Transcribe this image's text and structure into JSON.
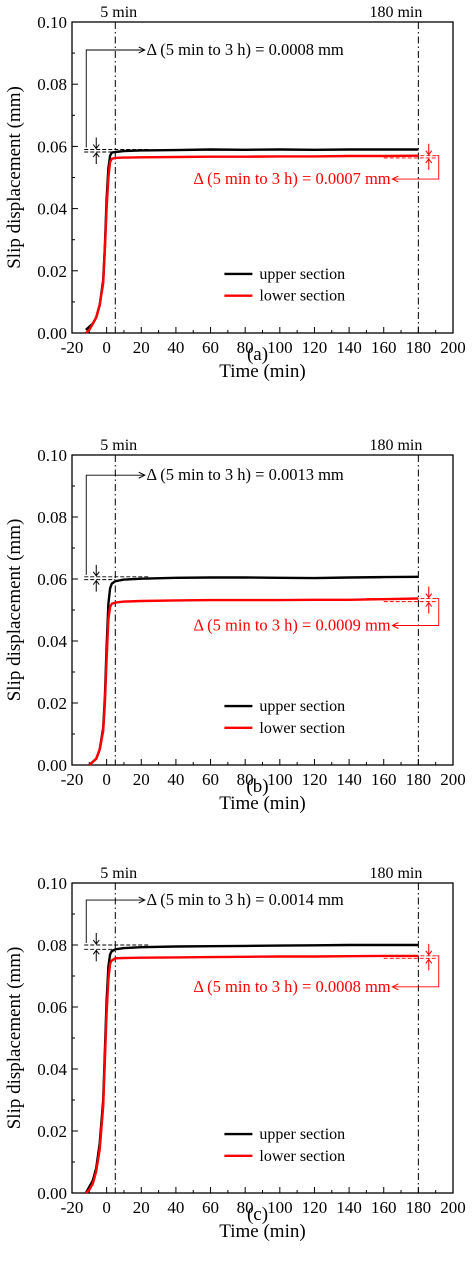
{
  "colors": {
    "upper": "#000000",
    "lower": "#ff0000",
    "axis": "#000000"
  },
  "chart_data": [
    {
      "type": "line",
      "panel_label": "(a)",
      "xlabel": "Time (min)",
      "ylabel": "Slip displacement (mm)",
      "xlim": [
        -20,
        200
      ],
      "ylim": [
        0,
        0.1
      ],
      "xticks": [
        "-20",
        "0",
        "20",
        "40",
        "60",
        "80",
        "100",
        "120",
        "140",
        "160",
        "180",
        "200"
      ],
      "yticks": [
        "0.00",
        "0.02",
        "0.04",
        "0.06",
        "0.08",
        "0.10"
      ],
      "markers": [
        {
          "x": 5,
          "label": "5 min"
        },
        {
          "x": 180,
          "label": "180 min"
        }
      ],
      "legend": {
        "position": "lower-right"
      },
      "series": [
        {
          "name": "upper section",
          "color": "#000000",
          "x": [
            -12,
            -10,
            -8,
            -6,
            -4,
            -2,
            -1,
            0,
            1,
            2,
            3,
            5,
            10,
            20,
            40,
            60,
            80,
            100,
            120,
            140,
            160,
            180
          ],
          "y": [
            0.001,
            0.002,
            0.003,
            0.005,
            0.009,
            0.017,
            0.028,
            0.043,
            0.053,
            0.057,
            0.058,
            0.0582,
            0.0585,
            0.0587,
            0.0588,
            0.059,
            0.0589,
            0.059,
            0.0589,
            0.059,
            0.059,
            0.059
          ]
        },
        {
          "name": "lower section",
          "color": "#ff0000",
          "x": [
            -12,
            -10,
            -8,
            -6,
            -4,
            -2,
            -1,
            0,
            1,
            2,
            3,
            5,
            10,
            20,
            40,
            60,
            80,
            100,
            120,
            140,
            160,
            180
          ],
          "y": [
            0.0,
            0.001,
            0.003,
            0.005,
            0.009,
            0.016,
            0.027,
            0.04,
            0.05,
            0.055,
            0.056,
            0.0563,
            0.0564,
            0.0565,
            0.0566,
            0.0567,
            0.0567,
            0.0568,
            0.0568,
            0.0569,
            0.0569,
            0.057
          ]
        }
      ],
      "annotations": [
        {
          "text": "Δ (5 min to 3 h) = 0.0008 mm",
          "target": "upper"
        },
        {
          "text": "Δ (5 min to 3 h) = 0.0007 mm",
          "target": "lower"
        }
      ]
    },
    {
      "type": "line",
      "panel_label": "(b)",
      "xlabel": "Time (min)",
      "ylabel": "Slip displacement (mm)",
      "xlim": [
        -20,
        200
      ],
      "ylim": [
        0,
        0.1
      ],
      "xticks": [
        "-20",
        "0",
        "20",
        "40",
        "60",
        "80",
        "100",
        "120",
        "140",
        "160",
        "180",
        "200"
      ],
      "yticks": [
        "0.00",
        "0.02",
        "0.04",
        "0.06",
        "0.08",
        "0.10"
      ],
      "markers": [
        {
          "x": 5,
          "label": "5 min"
        },
        {
          "x": 180,
          "label": "180 min"
        }
      ],
      "legend": {
        "position": "lower-right"
      },
      "series": [
        {
          "name": "upper section",
          "color": "#000000",
          "x": [
            -10,
            -8,
            -6,
            -4,
            -2,
            -1,
            0,
            1,
            2,
            3,
            5,
            10,
            20,
            40,
            60,
            80,
            100,
            120,
            140,
            160,
            180
          ],
          "y": [
            0.0,
            0.001,
            0.002,
            0.005,
            0.012,
            0.022,
            0.038,
            0.052,
            0.057,
            0.0585,
            0.0593,
            0.0598,
            0.0601,
            0.0604,
            0.0605,
            0.0605,
            0.0604,
            0.0603,
            0.0605,
            0.0606,
            0.0607
          ]
        },
        {
          "name": "lower section",
          "color": "#ff0000",
          "x": [
            -10,
            -8,
            -6,
            -4,
            -2,
            -1,
            0,
            1,
            2,
            3,
            5,
            10,
            20,
            40,
            60,
            80,
            100,
            120,
            140,
            160,
            180
          ],
          "y": [
            0.0,
            0.001,
            0.002,
            0.005,
            0.011,
            0.02,
            0.034,
            0.047,
            0.051,
            0.052,
            0.0524,
            0.0527,
            0.0529,
            0.0531,
            0.0532,
            0.0532,
            0.0532,
            0.0533,
            0.0533,
            0.0535,
            0.0537
          ]
        }
      ],
      "annotations": [
        {
          "text": "Δ (5 min to 3 h) = 0.0013 mm",
          "target": "upper"
        },
        {
          "text": "Δ (5 min to 3 h) = 0.0009 mm",
          "target": "lower"
        }
      ]
    },
    {
      "type": "line",
      "panel_label": "(c)",
      "xlabel": "Time (min)",
      "ylabel": "Slip displacement (mm)",
      "xlim": [
        -20,
        200
      ],
      "ylim": [
        0,
        0.1
      ],
      "xticks": [
        "-20",
        "0",
        "20",
        "40",
        "60",
        "80",
        "100",
        "120",
        "140",
        "160",
        "180",
        "200"
      ],
      "yticks": [
        "0.00",
        "0.02",
        "0.04",
        "0.06",
        "0.08",
        "0.10"
      ],
      "markers": [
        {
          "x": 5,
          "label": "5 min"
        },
        {
          "x": 180,
          "label": "180 min"
        }
      ],
      "legend": {
        "position": "lower-right"
      },
      "series": [
        {
          "name": "upper section",
          "color": "#000000",
          "x": [
            -12,
            -10,
            -8,
            -6,
            -4,
            -2,
            -1,
            0,
            1,
            2,
            3,
            5,
            10,
            20,
            40,
            60,
            80,
            100,
            120,
            140,
            160,
            180
          ],
          "y": [
            0.0,
            0.002,
            0.004,
            0.008,
            0.016,
            0.03,
            0.046,
            0.062,
            0.073,
            0.077,
            0.078,
            0.0786,
            0.079,
            0.0793,
            0.0795,
            0.0796,
            0.0797,
            0.0798,
            0.0799,
            0.08,
            0.08,
            0.08
          ]
        },
        {
          "name": "lower section",
          "color": "#ff0000",
          "x": [
            -12,
            -10,
            -8,
            -6,
            -4,
            -2,
            -1,
            0,
            1,
            2,
            3,
            5,
            10,
            20,
            40,
            60,
            80,
            100,
            120,
            140,
            160,
            180
          ],
          "y": [
            0.0,
            0.001,
            0.003,
            0.007,
            0.014,
            0.028,
            0.043,
            0.058,
            0.069,
            0.074,
            0.075,
            0.0757,
            0.0758,
            0.0759,
            0.076,
            0.0761,
            0.0762,
            0.0763,
            0.0763,
            0.0764,
            0.0765,
            0.0765
          ]
        }
      ],
      "annotations": [
        {
          "text": "Δ (5 min to 3 h) = 0.0014 mm",
          "target": "upper"
        },
        {
          "text": "Δ (5 min to 3 h) = 0.0008 mm",
          "target": "lower"
        }
      ]
    }
  ]
}
